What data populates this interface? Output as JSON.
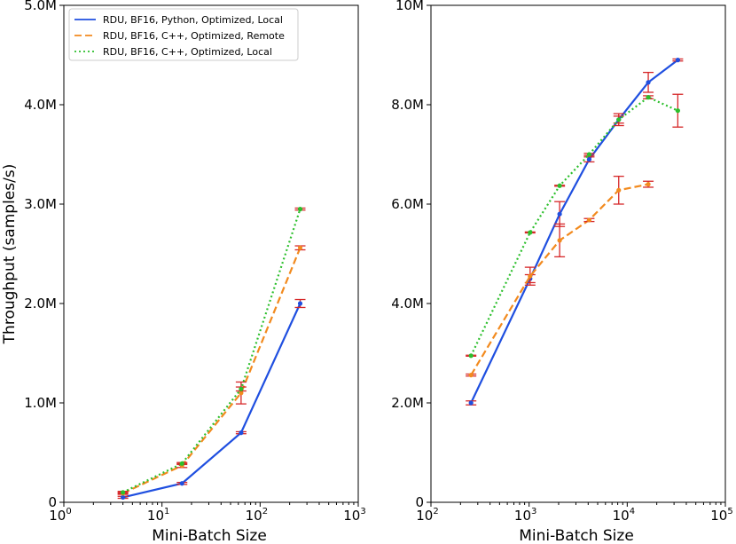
{
  "chart_data": [
    {
      "type": "line",
      "xscale": "log",
      "xlim": [
        1,
        1000
      ],
      "ylim": [
        0,
        5000000
      ],
      "xlabel": "Mini-Batch Size",
      "ylabel": "Throughput (samples/s)",
      "yticks": [
        0,
        1000000,
        2000000,
        3000000,
        4000000,
        5000000
      ],
      "ytick_labels": [
        "0",
        "1.0M",
        "2.0M",
        "3.0M",
        "4.0M",
        "5.0M"
      ],
      "xticks": [
        1,
        10,
        100,
        1000
      ],
      "xtick_bases": [
        "10",
        "10",
        "10",
        "10"
      ],
      "xtick_exps": [
        "0",
        "1",
        "2",
        "3"
      ],
      "legend_loc": "top-left",
      "series": [
        {
          "name": "RDU, BF16, Python, Optimized, Local",
          "color": "#1f4fe0",
          "style": "solid",
          "marker_color": "#1f4fe0",
          "x": [
            4,
            16,
            64,
            256
          ],
          "y": [
            50000,
            190000,
            700000,
            2000000
          ],
          "err": [
            10000,
            10000,
            10000,
            40000
          ]
        },
        {
          "name": "RDU, BF16, C++, Optimized, Remote",
          "color": "#f28a1e",
          "style": "dashed",
          "marker_color": "#f28a1e",
          "x": [
            4,
            16,
            64,
            256
          ],
          "y": [
            90000,
            370000,
            1100000,
            2560000
          ],
          "err": [
            10000,
            20000,
            110000,
            20000
          ]
        },
        {
          "name": "RDU, BF16, C++, Optimized, Local",
          "color": "#2cbf2c",
          "style": "dotted",
          "marker_color": "#2cbf2c",
          "x": [
            4,
            16,
            64,
            256
          ],
          "y": [
            100000,
            390000,
            1140000,
            2950000
          ],
          "err": [
            10000,
            10000,
            20000,
            10000
          ]
        }
      ]
    },
    {
      "type": "line",
      "xscale": "log",
      "xlim": [
        100,
        100000
      ],
      "ylim": [
        0,
        10000000
      ],
      "xlabel": "Mini-Batch Size",
      "ylabel": "",
      "yticks": [
        0,
        2000000,
        4000000,
        6000000,
        8000000,
        10000000
      ],
      "ytick_labels": [
        "0",
        "2.0M",
        "4.0M",
        "6.0M",
        "8.0M",
        "10M"
      ],
      "xticks": [
        100,
        1000,
        10000,
        100000
      ],
      "xtick_bases": [
        "10",
        "10",
        "10",
        "10"
      ],
      "xtick_exps": [
        "2",
        "3",
        "4",
        "5"
      ],
      "series": [
        {
          "name": "RDU, BF16, Python, Optimized, Local",
          "color": "#1f4fe0",
          "style": "solid",
          "marker_color": "#1f4fe0",
          "x": [
            256,
            1024,
            2048,
            4096,
            8192,
            16384,
            32768
          ],
          "y": [
            2000000,
            4500000,
            5800000,
            6900000,
            7700000,
            8450000,
            8900000
          ],
          "err": [
            40000,
            80000,
            250000,
            50000,
            70000,
            200000,
            20000
          ]
        },
        {
          "name": "RDU, BF16, C++, Optimized, Remote",
          "color": "#f28a1e",
          "style": "dashed",
          "marker_color": "#f28a1e",
          "x": [
            256,
            1024,
            2048,
            4096,
            8192,
            16384
          ],
          "y": [
            2560000,
            4550000,
            5270000,
            5680000,
            6280000,
            6400000
          ],
          "err": [
            20000,
            180000,
            330000,
            30000,
            280000,
            60000
          ]
        },
        {
          "name": "RDU, BF16, C++, Optimized, Local",
          "color": "#2cbf2c",
          "style": "dotted",
          "marker_color": "#2cbf2c",
          "x": [
            256,
            1024,
            2048,
            4096,
            8192,
            16384,
            32768
          ],
          "y": [
            2950000,
            5430000,
            6370000,
            7000000,
            7700000,
            8150000,
            7880000
          ],
          "err": [
            10000,
            10000,
            10000,
            20000,
            120000,
            30000,
            330000
          ]
        }
      ]
    }
  ]
}
